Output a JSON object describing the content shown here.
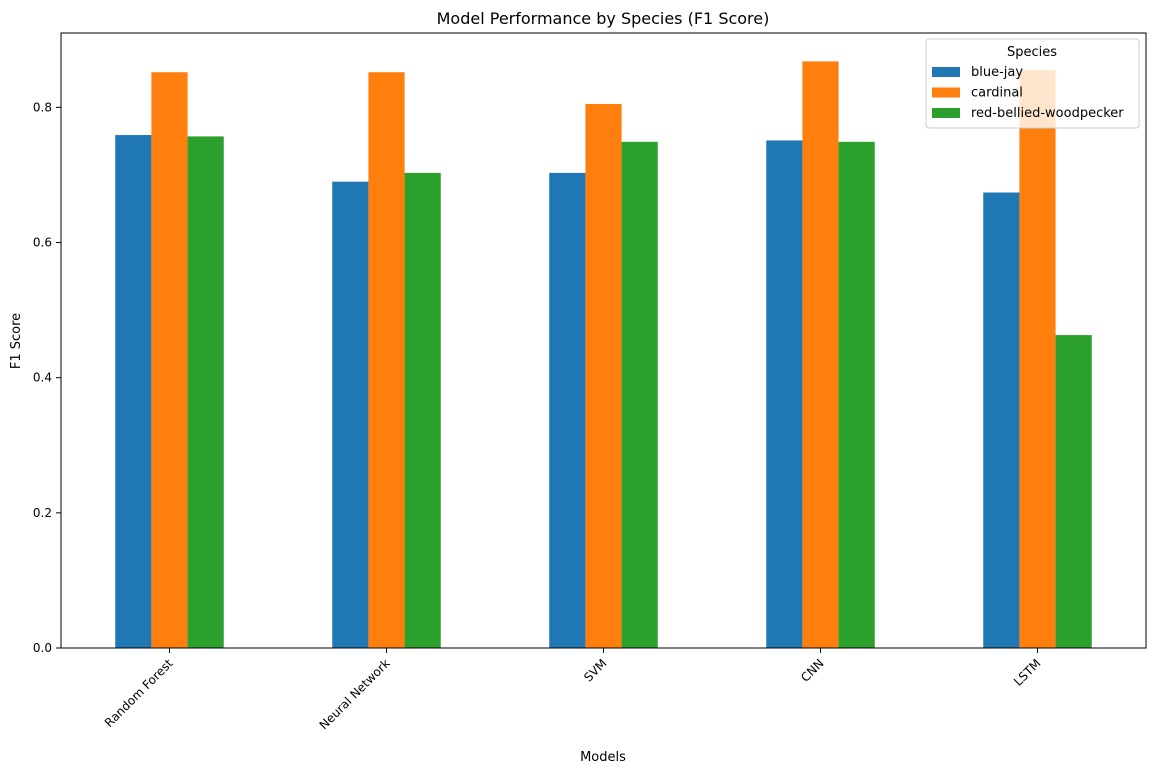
{
  "chart_data": {
    "type": "bar",
    "title": "Model Performance by Species (F1 Score)",
    "xlabel": "Models",
    "ylabel": "F1 Score",
    "categories": [
      "Random Forest",
      "Neural Network",
      "SVM",
      "CNN",
      "LSTM"
    ],
    "series": [
      {
        "name": "blue-jay",
        "color": "#1f77b4",
        "values": [
          0.759,
          0.69,
          0.703,
          0.751,
          0.674
        ]
      },
      {
        "name": "cardinal",
        "color": "#ff7f0e",
        "values": [
          0.852,
          0.852,
          0.805,
          0.868,
          0.855
        ]
      },
      {
        "name": "red-bellied-woodpecker",
        "color": "#2ca02c",
        "values": [
          0.757,
          0.703,
          0.749,
          0.749,
          0.463
        ]
      }
    ],
    "ylim": [
      0,
      0.91
    ],
    "yticks": [
      0.0,
      0.2,
      0.4,
      0.6,
      0.8
    ],
    "ytick_labels": [
      "0.0",
      "0.2",
      "0.4",
      "0.6",
      "0.8"
    ],
    "grid": false,
    "legend": {
      "title": "Species",
      "placement": "upper right"
    }
  }
}
